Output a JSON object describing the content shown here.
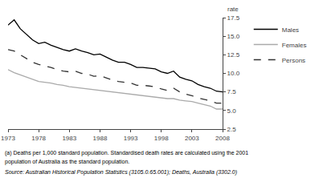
{
  "chart_data": {
    "type": "line",
    "ylabel": "rate",
    "x": [
      1973,
      1974,
      1975,
      1976,
      1977,
      1978,
      1979,
      1980,
      1981,
      1982,
      1983,
      1984,
      1985,
      1986,
      1987,
      1988,
      1989,
      1990,
      1991,
      1992,
      1993,
      1994,
      1995,
      1996,
      1997,
      1998,
      1999,
      2000,
      2001,
      2002,
      2003,
      2004,
      2005,
      2006,
      2007,
      2008
    ],
    "series": [
      {
        "name": "Males",
        "color": "#000000",
        "line_style": "solid",
        "values": [
          16.5,
          17.2,
          16.0,
          15.2,
          14.5,
          14.0,
          14.2,
          13.8,
          13.5,
          13.2,
          13.0,
          13.3,
          13.0,
          12.8,
          12.5,
          12.6,
          12.2,
          11.8,
          11.5,
          11.5,
          11.2,
          10.8,
          10.8,
          10.7,
          10.6,
          10.2,
          10.0,
          10.3,
          9.5,
          9.2,
          9.0,
          8.5,
          8.2,
          8.0,
          7.6,
          7.5
        ]
      },
      {
        "name": "Females",
        "color": "#aaaaaa",
        "line_style": "solid",
        "values": [
          10.5,
          10.1,
          9.8,
          9.5,
          9.2,
          8.9,
          8.8,
          8.7,
          8.5,
          8.4,
          8.2,
          8.1,
          8.0,
          7.9,
          7.8,
          7.7,
          7.6,
          7.5,
          7.4,
          7.3,
          7.2,
          7.1,
          7.0,
          6.9,
          6.8,
          6.7,
          6.6,
          6.6,
          6.4,
          6.3,
          6.2,
          6.0,
          5.8,
          5.6,
          5.2,
          5.2
        ]
      },
      {
        "name": "Persons",
        "color": "#333333",
        "line_style": "dashed",
        "values": [
          13.2,
          13.0,
          12.5,
          12.0,
          11.5,
          11.2,
          11.0,
          10.8,
          10.5,
          10.3,
          10.2,
          10.3,
          10.0,
          9.9,
          9.6,
          9.7,
          9.4,
          9.1,
          8.9,
          8.8,
          8.7,
          8.4,
          8.4,
          8.3,
          8.2,
          7.9,
          7.7,
          8.0,
          7.5,
          7.2,
          7.0,
          6.7,
          6.5,
          6.3,
          6.0,
          6.0
        ]
      }
    ],
    "xlim": [
      1973,
      2008
    ],
    "xticks": [
      1973,
      1978,
      1983,
      1988,
      1993,
      1998,
      2003,
      2008
    ],
    "ylim": [
      2.5,
      17.5
    ],
    "yticks": [
      2.5,
      {
        "value": 5,
        "label": "5.0"
      },
      7.5,
      {
        "value": 10,
        "label": "10.0"
      },
      12.5,
      {
        "value": 15,
        "label": "15.0"
      },
      17.5
    ],
    "grid": false,
    "legend": "upper right",
    "annotations": [
      "(a) Deaths per 1,000 standard population. Standardised death rates are calculated using the 2001",
      "population of Australia as the standard population.",
      "Source: Australian Historical Population Statistics (3105.0.65.001); Deaths, Australia (3302.0)"
    ]
  }
}
